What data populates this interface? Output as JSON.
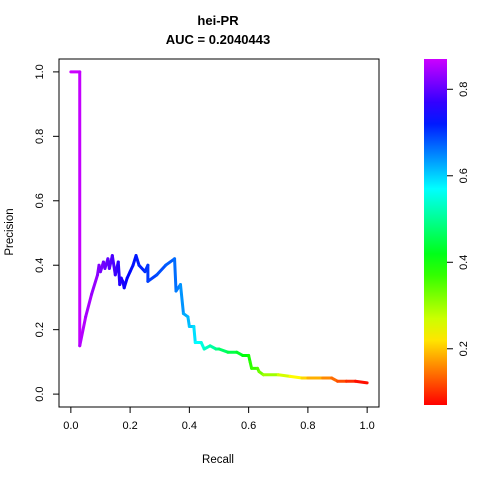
{
  "chart_data": {
    "type": "line",
    "title": "hei-PR",
    "subtitle": "AUC = 0.2040443",
    "xlabel": "Recall",
    "ylabel": "Precision",
    "xlim": [
      0,
      1
    ],
    "ylim": [
      0,
      1
    ],
    "xticks": [
      "0.0",
      "0.2",
      "0.4",
      "0.6",
      "0.8",
      "1.0"
    ],
    "yticks": [
      "0.0",
      "0.2",
      "0.4",
      "0.6",
      "0.8",
      "1.0"
    ],
    "grid": false,
    "colorbar": {
      "range": [
        0.07,
        0.87
      ],
      "ticks": [
        "0.2",
        "0.4",
        "0.6",
        "0.8"
      ],
      "colormap": "rainbow"
    },
    "series": [
      {
        "points": [
          [
            0.0,
            1.0,
            0.87
          ],
          [
            0.03,
            1.0,
            0.87
          ],
          [
            0.03,
            0.15,
            0.86
          ],
          [
            0.05,
            0.24,
            0.85
          ],
          [
            0.07,
            0.31,
            0.84
          ],
          [
            0.09,
            0.37,
            0.83
          ],
          [
            0.095,
            0.4,
            0.82
          ],
          [
            0.1,
            0.38,
            0.82
          ],
          [
            0.11,
            0.41,
            0.81
          ],
          [
            0.115,
            0.39,
            0.81
          ],
          [
            0.125,
            0.42,
            0.8
          ],
          [
            0.13,
            0.39,
            0.8
          ],
          [
            0.14,
            0.43,
            0.79
          ],
          [
            0.15,
            0.37,
            0.78
          ],
          [
            0.16,
            0.41,
            0.77
          ],
          [
            0.165,
            0.34,
            0.76
          ],
          [
            0.17,
            0.36,
            0.76
          ],
          [
            0.175,
            0.35,
            0.76
          ],
          [
            0.18,
            0.33,
            0.75
          ],
          [
            0.19,
            0.36,
            0.74
          ],
          [
            0.2,
            0.38,
            0.73
          ],
          [
            0.21,
            0.4,
            0.73
          ],
          [
            0.22,
            0.43,
            0.72
          ],
          [
            0.23,
            0.4,
            0.72
          ],
          [
            0.25,
            0.38,
            0.71
          ],
          [
            0.26,
            0.4,
            0.7
          ],
          [
            0.26,
            0.35,
            0.7
          ],
          [
            0.29,
            0.37,
            0.69
          ],
          [
            0.32,
            0.4,
            0.68
          ],
          [
            0.35,
            0.42,
            0.67
          ],
          [
            0.355,
            0.32,
            0.66
          ],
          [
            0.37,
            0.34,
            0.65
          ],
          [
            0.38,
            0.25,
            0.63
          ],
          [
            0.395,
            0.24,
            0.62
          ],
          [
            0.4,
            0.21,
            0.61
          ],
          [
            0.415,
            0.21,
            0.6
          ],
          [
            0.42,
            0.16,
            0.58
          ],
          [
            0.44,
            0.16,
            0.56
          ],
          [
            0.45,
            0.14,
            0.54
          ],
          [
            0.47,
            0.15,
            0.52
          ],
          [
            0.49,
            0.14,
            0.5
          ],
          [
            0.5,
            0.14,
            0.48
          ],
          [
            0.53,
            0.13,
            0.46
          ],
          [
            0.56,
            0.13,
            0.44
          ],
          [
            0.58,
            0.12,
            0.42
          ],
          [
            0.6,
            0.12,
            0.4
          ],
          [
            0.605,
            0.1,
            0.38
          ],
          [
            0.61,
            0.08,
            0.37
          ],
          [
            0.63,
            0.08,
            0.36
          ],
          [
            0.635,
            0.07,
            0.34
          ],
          [
            0.65,
            0.06,
            0.32
          ],
          [
            0.7,
            0.06,
            0.28
          ],
          [
            0.74,
            0.055,
            0.25
          ],
          [
            0.78,
            0.05,
            0.22
          ],
          [
            0.8,
            0.05,
            0.2
          ],
          [
            0.85,
            0.05,
            0.17
          ],
          [
            0.88,
            0.05,
            0.15
          ],
          [
            0.9,
            0.04,
            0.13
          ],
          [
            0.93,
            0.04,
            0.11
          ],
          [
            0.96,
            0.04,
            0.09
          ],
          [
            1.0,
            0.035,
            0.07
          ]
        ]
      }
    ]
  }
}
